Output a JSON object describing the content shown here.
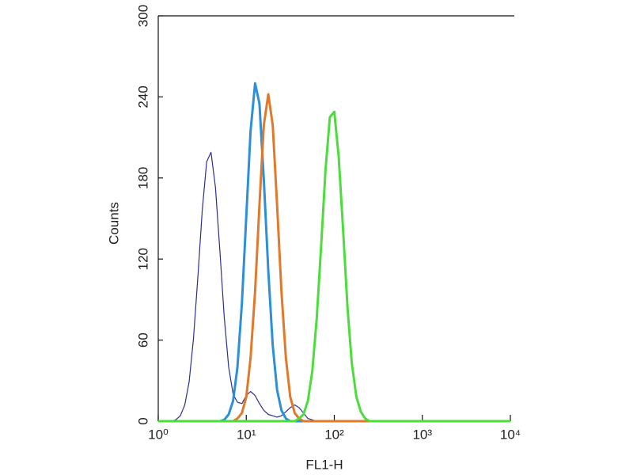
{
  "chart_data": {
    "type": "line",
    "xlabel": "FL1-H",
    "ylabel": "Counts",
    "xscale": "log",
    "xlim": [
      1,
      10000
    ],
    "xticks": [
      {
        "value": 1,
        "label": "10⁰"
      },
      {
        "value": 10,
        "label": "10¹"
      },
      {
        "value": 100,
        "label": "10²"
      },
      {
        "value": 1000,
        "label": "10³"
      },
      {
        "value": 10000,
        "label": "10⁴"
      }
    ],
    "ylim": [
      0,
      300
    ],
    "yticks": [
      0,
      60,
      120,
      180,
      240,
      300
    ],
    "x": [
      1,
      1.12,
      1.26,
      1.41,
      1.58,
      1.78,
      2,
      2.24,
      2.51,
      2.82,
      3.16,
      3.55,
      3.98,
      4.47,
      5.01,
      5.62,
      6.31,
      7.08,
      7.94,
      8.91,
      10,
      11.2,
      12.6,
      14.1,
      15.8,
      17.8,
      20,
      22.4,
      25.1,
      28.2,
      31.6,
      35.5,
      39.8,
      44.7,
      50.1,
      56.2,
      63.1,
      70.8,
      79.4,
      89.1,
      100,
      112,
      126,
      141,
      158,
      178,
      200,
      224,
      251,
      282,
      316,
      1000,
      3162,
      10000
    ],
    "series": [
      {
        "color": "#2b2f8f",
        "width": 1.2,
        "values": [
          0,
          0,
          0,
          0,
          1,
          4,
          12,
          29,
          61,
          107,
          156,
          192,
          199,
          173,
          126,
          77,
          40,
          20,
          14,
          13,
          19,
          22,
          19,
          13,
          8,
          5,
          4,
          3,
          4,
          7,
          10,
          12,
          10,
          6,
          2,
          1,
          0,
          0,
          0,
          0,
          0,
          0,
          0,
          0,
          0,
          0,
          0,
          0,
          0,
          0,
          0,
          0,
          0,
          0
        ]
      },
      {
        "color": "#2d8fd6",
        "width": 3,
        "values": [
          0,
          0,
          0,
          0,
          0,
          0,
          0,
          0,
          0,
          0,
          0,
          0,
          0,
          0,
          0,
          1,
          5,
          15,
          40,
          87,
          152,
          215,
          250,
          235,
          179,
          111,
          56,
          23,
          8,
          2,
          0,
          0,
          0,
          0,
          0,
          0,
          0,
          0,
          0,
          0,
          0,
          0,
          0,
          0,
          0,
          0,
          0,
          0,
          0,
          0,
          0,
          0,
          0,
          0
        ]
      },
      {
        "color": "#e07a2a",
        "width": 3,
        "values": [
          0,
          0,
          0,
          0,
          0,
          0,
          0,
          0,
          0,
          0,
          0,
          0,
          0,
          0,
          0,
          0,
          0,
          0,
          2,
          6,
          18,
          47,
          96,
          160,
          219,
          242,
          219,
          160,
          96,
          47,
          18,
          6,
          2,
          0,
          0,
          0,
          0,
          0,
          0,
          0,
          0,
          0,
          0,
          0,
          0,
          0,
          0,
          0,
          0,
          0,
          0,
          0,
          0,
          0
        ]
      },
      {
        "color": "#4cdc3c",
        "width": 3,
        "values": [
          0,
          0,
          0,
          0,
          0,
          0,
          0,
          0,
          0,
          0,
          0,
          0,
          0,
          0,
          0,
          0,
          0,
          0,
          0,
          0,
          0,
          0,
          0,
          0,
          0,
          0,
          0,
          0,
          0,
          0,
          0,
          0,
          2,
          5,
          15,
          37,
          76,
          129,
          186,
          225,
          229,
          196,
          141,
          85,
          43,
          18,
          7,
          2,
          0,
          0,
          0,
          0,
          0,
          0
        ]
      }
    ]
  }
}
